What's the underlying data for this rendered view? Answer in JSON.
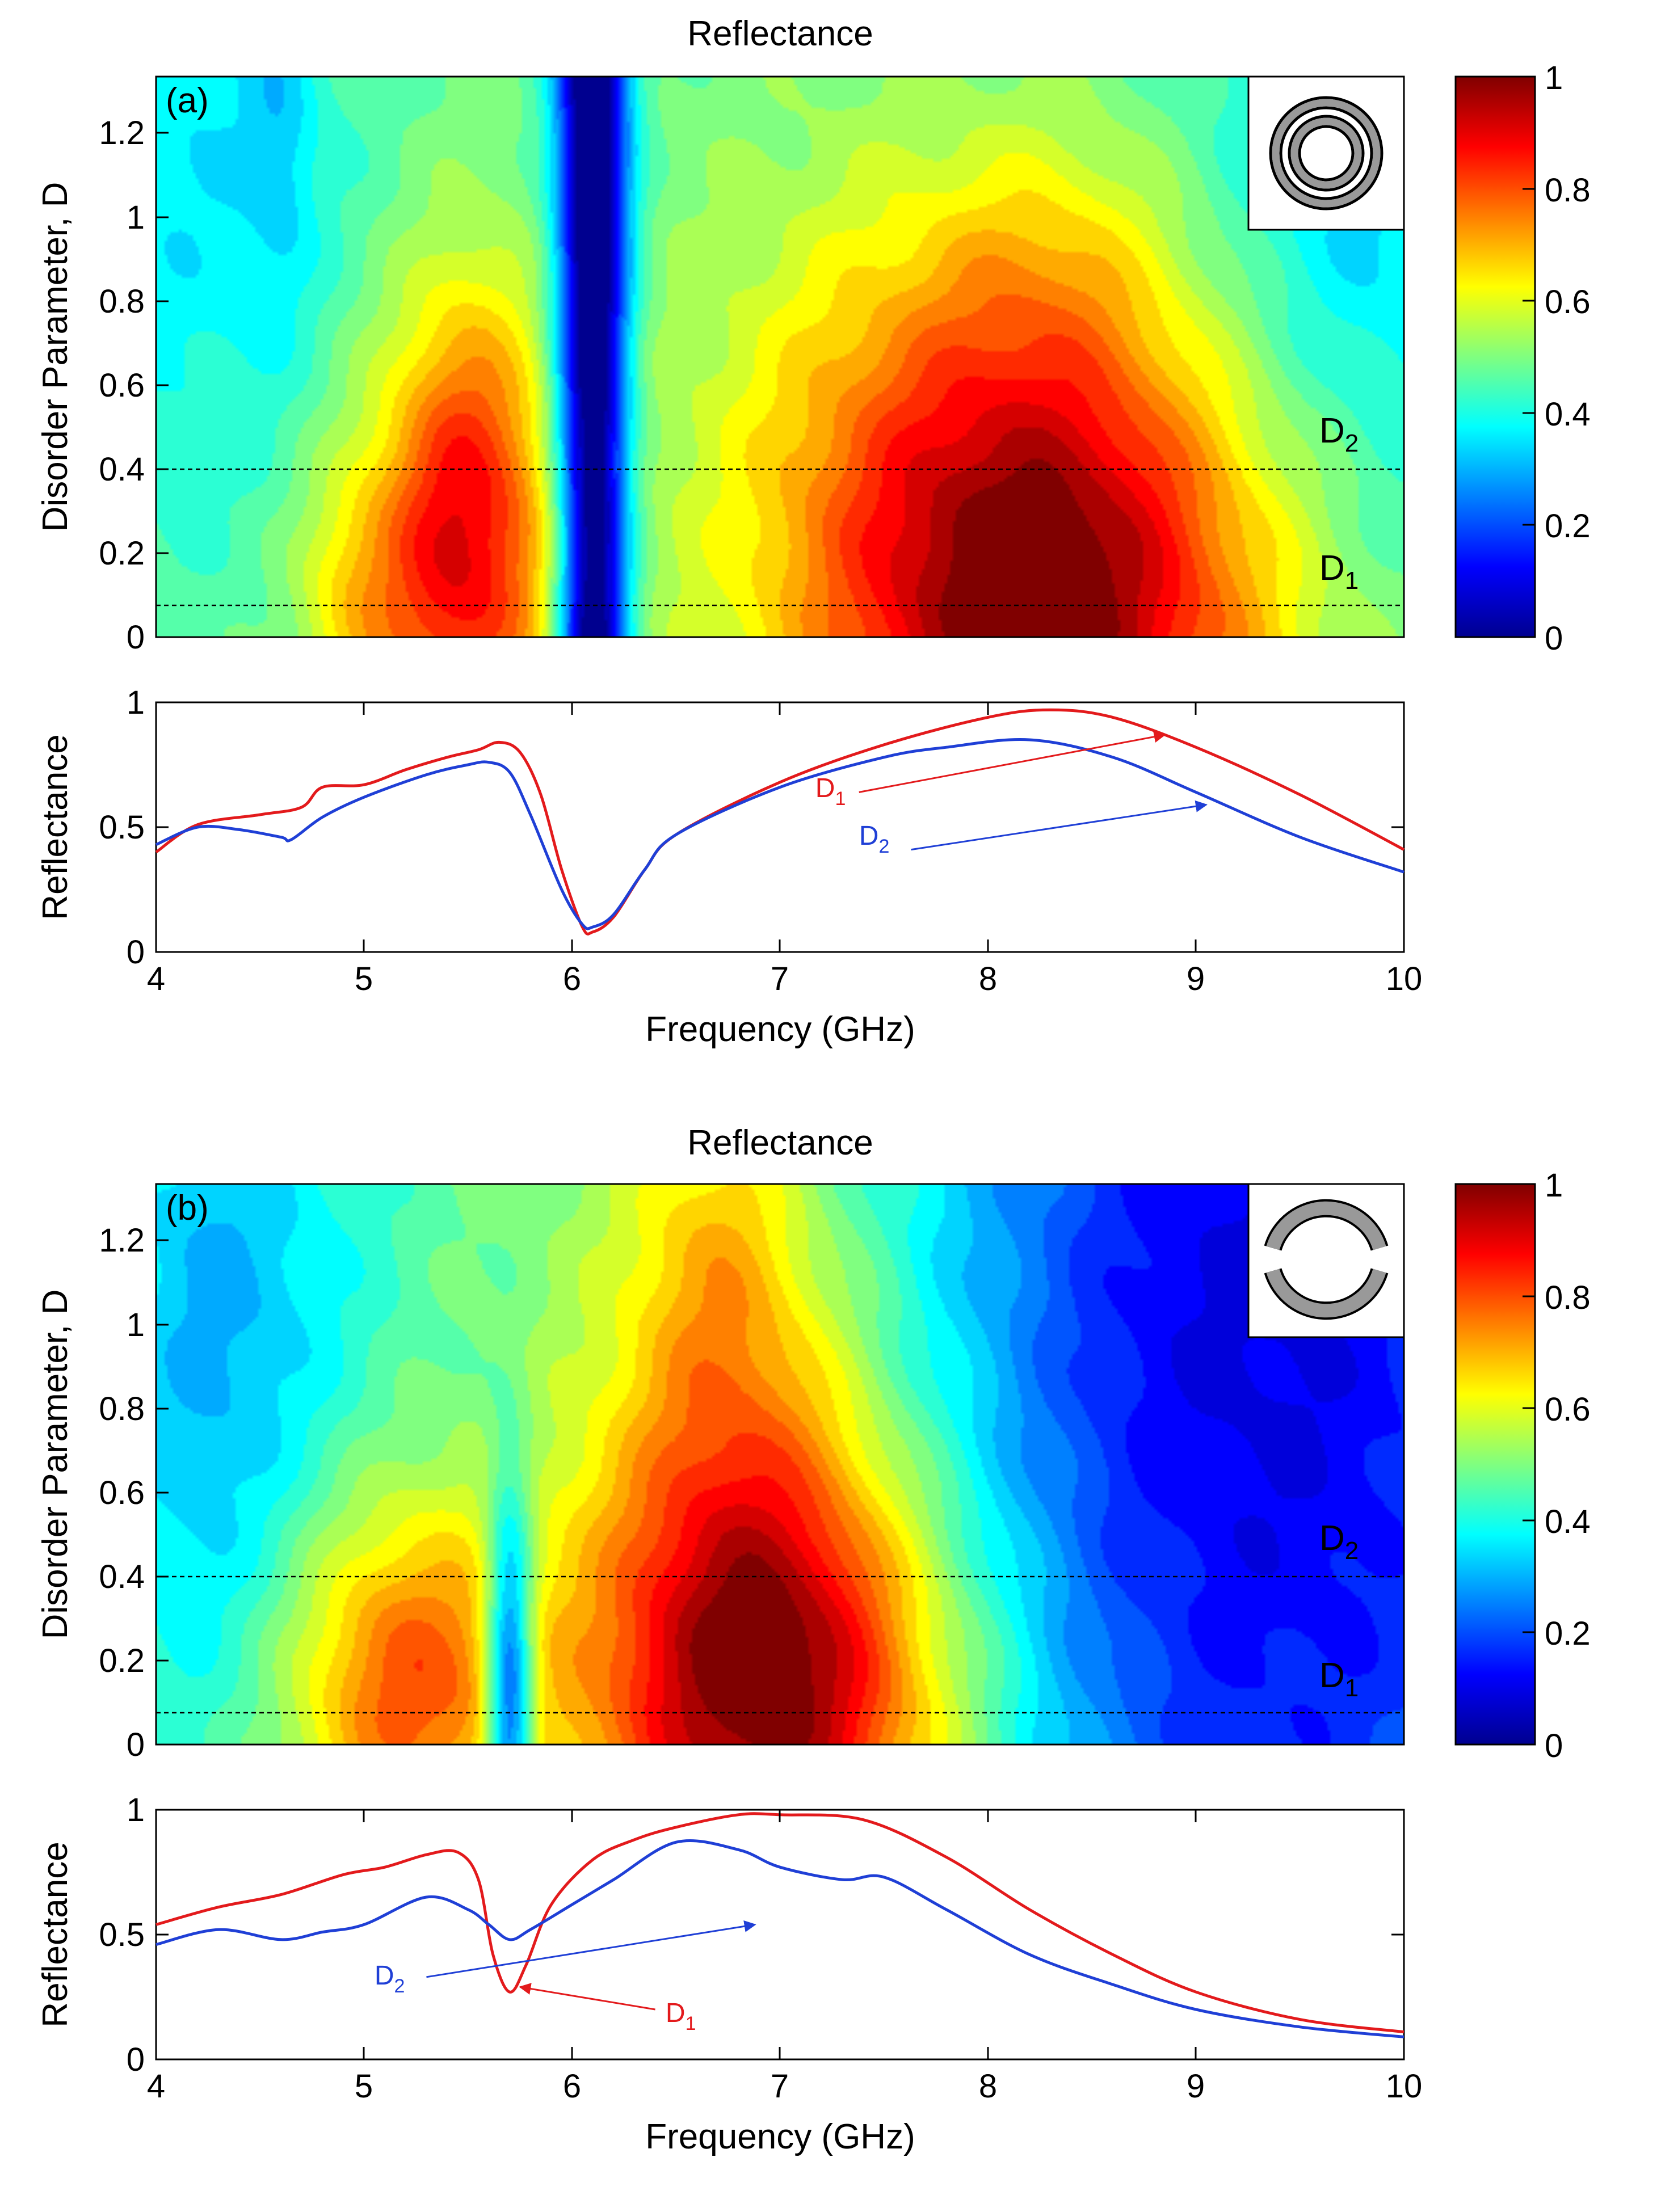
{
  "chart_data": [
    {
      "id": "a_map",
      "type": "heatmap",
      "panel_label": "(a)",
      "title": "Reflectance",
      "xlabel": "",
      "ylabel": "Disorder Parameter, D",
      "xlim": [
        4,
        10
      ],
      "ylim": [
        0,
        1.333
      ],
      "xticks": [],
      "yticks": [
        "0",
        "0.2",
        "0.4",
        "0.6",
        "0.8",
        "1",
        "1.2"
      ],
      "ytick_values": [
        0,
        0.2,
        0.4,
        0.6,
        0.8,
        1.0,
        1.2
      ],
      "colorbar_ticks": [
        "0",
        "0.2",
        "0.4",
        "0.6",
        "0.8",
        "1"
      ],
      "colorbar_values": [
        0,
        0.2,
        0.4,
        0.6,
        0.8,
        1.0
      ],
      "reference_lines": [
        {
          "label": "D",
          "subscript": "1",
          "y": 0.075,
          "label_color": "#000000"
        },
        {
          "label": "D",
          "subscript": "2",
          "y": 0.4,
          "label_color": "#000000"
        }
      ],
      "inset_icon": "concentric-rings-icon",
      "model": {
        "base": 0.48,
        "blobs": [
          {
            "x": 8.3,
            "y": 0.08,
            "sx": 0.8,
            "sy": 0.5,
            "a": 0.5
          },
          {
            "x": 7.6,
            "y": 0.45,
            "sx": 0.8,
            "sy": 0.5,
            "a": 0.12
          },
          {
            "x": 8.3,
            "y": 0.9,
            "sx": 0.4,
            "sy": 0.2,
            "a": 0.06
          },
          {
            "x": 5.45,
            "y": 0.15,
            "sx": 0.35,
            "sy": 0.35,
            "a": 0.38
          },
          {
            "x": 5.5,
            "y": 0.6,
            "sx": 0.25,
            "sy": 0.3,
            "a": 0.12
          },
          {
            "x": 4.9,
            "y": 0.1,
            "sx": 0.18,
            "sy": 0.2,
            "a": 0.1
          },
          {
            "x": 9.8,
            "y": 1.0,
            "sx": 0.6,
            "sy": 0.6,
            "a": -0.15
          },
          {
            "x": 4.2,
            "y": 1.1,
            "sx": 0.5,
            "sy": 0.6,
            "a": -0.12
          },
          {
            "x": 4.6,
            "y": 1.2,
            "sx": 0.12,
            "sy": 0.3,
            "a": -0.08
          },
          {
            "x": 6.1,
            "y": 0.7,
            "sx": 0.12,
            "sy": 6.0,
            "a": -0.6
          }
        ]
      }
    },
    {
      "id": "a_line",
      "type": "line",
      "title": "",
      "xlabel": "Frequency (GHz)",
      "ylabel": "Reflectance",
      "xlim": [
        4,
        10
      ],
      "ylim": [
        0,
        1
      ],
      "xticks": [
        "4",
        "5",
        "6",
        "7",
        "8",
        "9",
        "10"
      ],
      "xtick_values": [
        4,
        5,
        6,
        7,
        8,
        9,
        10
      ],
      "yticks": [
        "0",
        "0.5",
        "1"
      ],
      "ytick_values": [
        0,
        0.5,
        1
      ],
      "series": [
        {
          "name": "D1",
          "color": "#e31a1c",
          "x": [
            4.0,
            4.2,
            4.5,
            4.7,
            4.8,
            5.0,
            5.2,
            5.4,
            5.55,
            5.65,
            5.75,
            5.85,
            5.95,
            6.05,
            6.1,
            6.2,
            6.35,
            6.5,
            7.0,
            7.5,
            8.0,
            8.3,
            8.6,
            9.0,
            9.5,
            10.0
          ],
          "y": [
            0.4,
            0.51,
            0.55,
            0.58,
            0.66,
            0.67,
            0.73,
            0.78,
            0.81,
            0.84,
            0.8,
            0.63,
            0.33,
            0.1,
            0.08,
            0.14,
            0.33,
            0.47,
            0.68,
            0.83,
            0.94,
            0.97,
            0.94,
            0.82,
            0.63,
            0.41
          ]
        },
        {
          "name": "D2",
          "color": "#1f3fd6",
          "x": [
            4.0,
            4.2,
            4.4,
            4.6,
            4.65,
            4.8,
            5.0,
            5.3,
            5.5,
            5.6,
            5.7,
            5.8,
            5.95,
            6.05,
            6.1,
            6.2,
            6.35,
            6.5,
            7.0,
            7.5,
            7.8,
            8.2,
            8.6,
            9.0,
            9.5,
            10.0
          ],
          "y": [
            0.43,
            0.5,
            0.49,
            0.46,
            0.45,
            0.54,
            0.62,
            0.71,
            0.75,
            0.76,
            0.72,
            0.55,
            0.25,
            0.11,
            0.1,
            0.15,
            0.33,
            0.47,
            0.66,
            0.78,
            0.82,
            0.85,
            0.78,
            0.64,
            0.46,
            0.32
          ]
        }
      ],
      "annotations": [
        {
          "label": "D",
          "subscript": "1",
          "color": "#e31a1c",
          "text_x": 7.17,
          "text_y": 0.62,
          "arrow_from": [
            7.38,
            0.64
          ],
          "arrow_to": [
            8.85,
            0.87
          ]
        },
        {
          "label": "D",
          "subscript": "2",
          "color": "#1f3fd6",
          "text_x": 7.38,
          "text_y": 0.43,
          "arrow_from": [
            7.63,
            0.41
          ],
          "arrow_to": [
            9.05,
            0.59
          ]
        }
      ]
    },
    {
      "id": "b_map",
      "type": "heatmap",
      "panel_label": "(b)",
      "title": "Reflectance",
      "xlabel": "",
      "ylabel": "Disorder Parameter, D",
      "xlim": [
        4,
        10
      ],
      "ylim": [
        0,
        1.333
      ],
      "xticks": [],
      "yticks": [
        "0",
        "0.2",
        "0.4",
        "0.6",
        "0.8",
        "1",
        "1.2"
      ],
      "ytick_values": [
        0,
        0.2,
        0.4,
        0.6,
        0.8,
        1.0,
        1.2
      ],
      "colorbar_ticks": [
        "0",
        "0.2",
        "0.4",
        "0.6",
        "0.8",
        "1"
      ],
      "colorbar_values": [
        0,
        0.2,
        0.4,
        0.6,
        0.8,
        1.0
      ],
      "reference_lines": [
        {
          "label": "D",
          "subscript": "1",
          "y": 0.075,
          "label_color": "#ffd700"
        },
        {
          "label": "D",
          "subscript": "2",
          "y": 0.4,
          "label_color": "#ffd700"
        }
      ],
      "inset_icon": "split-ring-icon",
      "model": {
        "base": 0.5,
        "blobs": [
          {
            "x": 7.0,
            "y": 0.1,
            "sx": 0.65,
            "sy": 0.4,
            "a": 0.45
          },
          {
            "x": 6.8,
            "y": 0.6,
            "sx": 0.5,
            "sy": 0.5,
            "a": 0.2
          },
          {
            "x": 6.7,
            "y": 1.2,
            "sx": 0.3,
            "sy": 0.3,
            "a": 0.12
          },
          {
            "x": 5.2,
            "y": 0.15,
            "sx": 0.4,
            "sy": 0.3,
            "a": 0.3
          },
          {
            "x": 9.6,
            "y": 0.9,
            "sx": 1.2,
            "sy": 2.0,
            "a": -0.35
          },
          {
            "x": 8.6,
            "y": 1.0,
            "sx": 0.8,
            "sy": 0.8,
            "a": -0.1
          },
          {
            "x": 4.2,
            "y": 0.9,
            "sx": 0.4,
            "sy": 0.8,
            "a": -0.15
          },
          {
            "x": 4.7,
            "y": 1.1,
            "sx": 0.5,
            "sy": 0.5,
            "a": -0.08
          },
          {
            "x": 5.7,
            "y": 0.1,
            "sx": 0.08,
            "sy": 0.35,
            "a": -0.45
          }
        ]
      }
    },
    {
      "id": "b_line",
      "type": "line",
      "title": "",
      "xlabel": "Frequency (GHz)",
      "ylabel": "Reflectance",
      "xlim": [
        4,
        10
      ],
      "ylim": [
        0,
        1
      ],
      "xticks": [
        "4",
        "5",
        "6",
        "7",
        "8",
        "9",
        "10"
      ],
      "xtick_values": [
        4,
        5,
        6,
        7,
        8,
        9,
        10
      ],
      "yticks": [
        "0",
        "0.5",
        "1"
      ],
      "ytick_values": [
        0,
        0.5,
        1
      ],
      "series": [
        {
          "name": "D1",
          "color": "#e31a1c",
          "x": [
            4.0,
            4.3,
            4.6,
            4.9,
            5.1,
            5.3,
            5.45,
            5.55,
            5.62,
            5.7,
            5.78,
            5.9,
            6.1,
            6.3,
            6.5,
            6.8,
            7.0,
            7.4,
            7.8,
            8.2,
            8.6,
            9.0,
            9.5,
            10.0
          ],
          "y": [
            0.54,
            0.61,
            0.66,
            0.74,
            0.77,
            0.82,
            0.83,
            0.72,
            0.42,
            0.27,
            0.38,
            0.62,
            0.8,
            0.88,
            0.93,
            0.98,
            0.98,
            0.96,
            0.81,
            0.6,
            0.42,
            0.27,
            0.16,
            0.11
          ]
        },
        {
          "name": "D2",
          "color": "#1f3fd6",
          "x": [
            4.0,
            4.3,
            4.6,
            4.8,
            5.0,
            5.3,
            5.5,
            5.6,
            5.7,
            5.8,
            6.0,
            6.2,
            6.5,
            6.8,
            7.0,
            7.3,
            7.5,
            7.8,
            8.2,
            8.6,
            9.0,
            9.5,
            10.0
          ],
          "y": [
            0.46,
            0.52,
            0.48,
            0.51,
            0.54,
            0.65,
            0.6,
            0.54,
            0.48,
            0.52,
            0.62,
            0.72,
            0.87,
            0.84,
            0.77,
            0.72,
            0.73,
            0.6,
            0.42,
            0.3,
            0.2,
            0.13,
            0.09
          ]
        }
      ],
      "annotations": [
        {
          "label": "D",
          "subscript": "1",
          "color": "#e31a1c",
          "text_x": 6.45,
          "text_y": 0.15,
          "arrow_from": [
            6.4,
            0.2
          ],
          "arrow_to": [
            5.75,
            0.29
          ]
        },
        {
          "label": "D",
          "subscript": "2",
          "color": "#1f3fd6",
          "text_x": 5.05,
          "text_y": 0.3,
          "arrow_from": [
            5.3,
            0.33
          ],
          "arrow_to": [
            6.88,
            0.54
          ]
        }
      ]
    }
  ]
}
